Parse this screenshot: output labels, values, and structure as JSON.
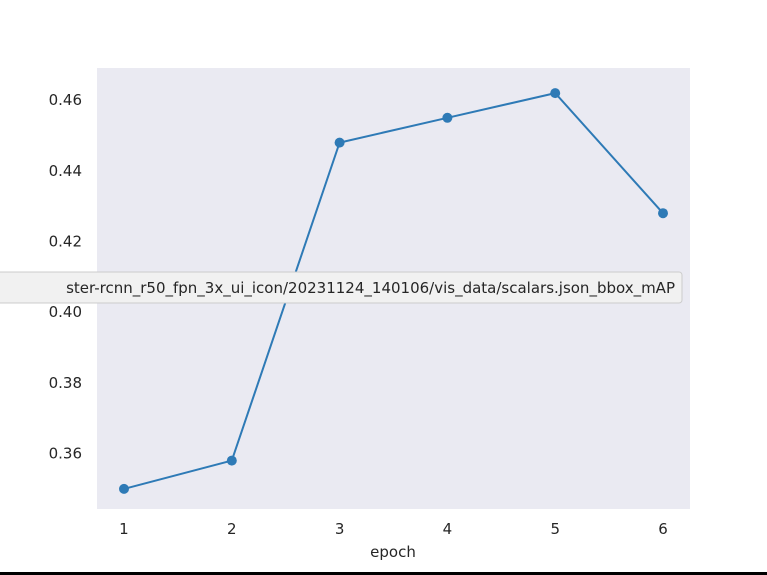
{
  "chart_data": {
    "type": "line",
    "title": "",
    "xlabel": "epoch",
    "ylabel": "",
    "x": [
      1,
      2,
      3,
      4,
      5,
      6
    ],
    "series": [
      {
        "name": "ster-rcnn_r50_fpn_3x_ui_icon/20231124_140106/vis_data/scalars.json_bbox_mAP",
        "values": [
          0.35,
          0.358,
          0.448,
          0.455,
          0.462,
          0.428
        ]
      }
    ],
    "xticks": [
      "1",
      "2",
      "3",
      "4",
      "5",
      "6"
    ],
    "yticks": [
      "0.36",
      "0.38",
      "0.40",
      "0.42",
      "0.44",
      "0.46"
    ],
    "xlim": [
      0.75,
      6.25
    ],
    "ylim": [
      0.3443,
      0.4691
    ],
    "grid": false,
    "legend": "center"
  },
  "colors": {
    "plot_background": "#eaeaf2",
    "line": "#2e7ab6",
    "text": "#262626",
    "legend_background": "#f1f1f1",
    "legend_border": "#cccccc"
  }
}
